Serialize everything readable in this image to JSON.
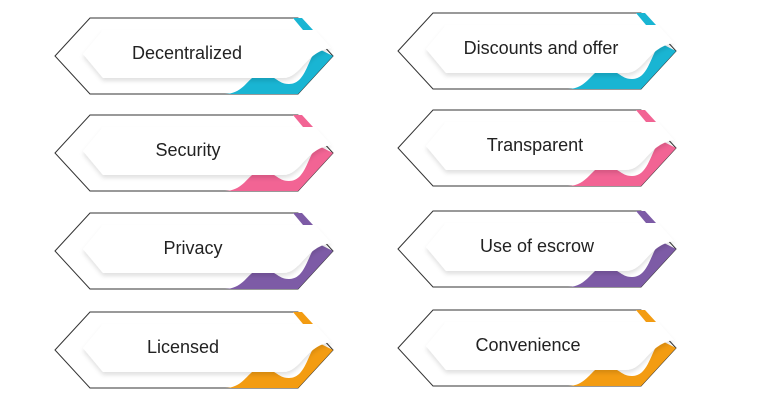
{
  "badges": [
    {
      "label": "Decentralized",
      "color": "#19b5d3"
    },
    {
      "label": "Discounts and offer",
      "color": "#19b5d3"
    },
    {
      "label": "Security",
      "color": "#f26494"
    },
    {
      "label": "Transparent",
      "color": "#f26494"
    },
    {
      "label": "Privacy",
      "color": "#7d5ba6"
    },
    {
      "label": "Use of escrow",
      "color": "#7d5ba6"
    },
    {
      "label": "Licensed",
      "color": "#f39c12"
    },
    {
      "label": "Convenience",
      "color": "#f39c12"
    }
  ]
}
